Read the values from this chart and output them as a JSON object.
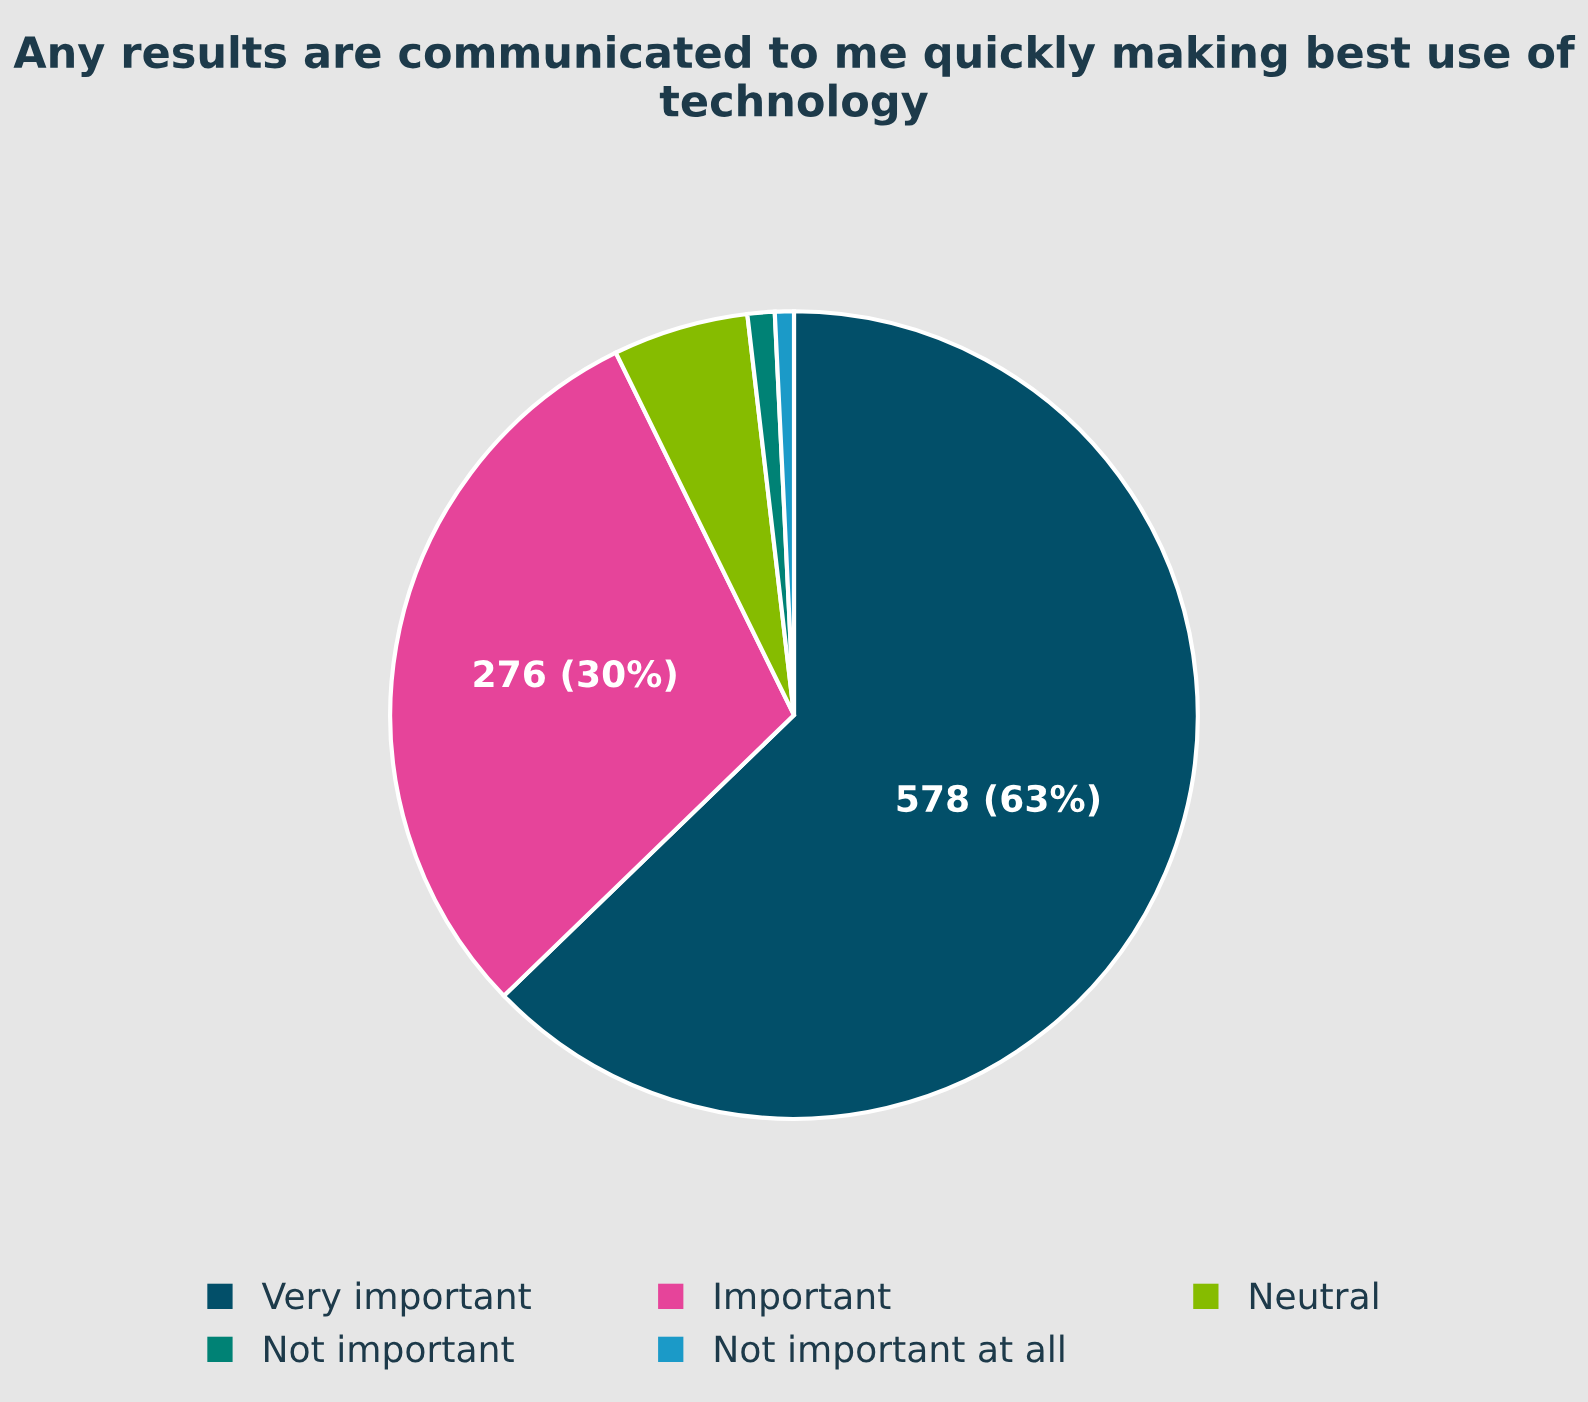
{
  "chart_data": {
    "type": "pie",
    "title": "Any results are communicated to me quickly making best use of technology",
    "categories": [
      "Very important",
      "Important",
      "Neutral",
      "Not important",
      "Not important at all"
    ],
    "values": [
      578,
      276,
      50,
      10,
      7
    ],
    "colors": [
      "#024f69",
      "#e6449a",
      "#86bc00",
      "#008275",
      "#1b9ac8"
    ],
    "value_labels": [
      "578 (63%)",
      "276 (30%)",
      null,
      null,
      null
    ],
    "legend": "bottom"
  }
}
